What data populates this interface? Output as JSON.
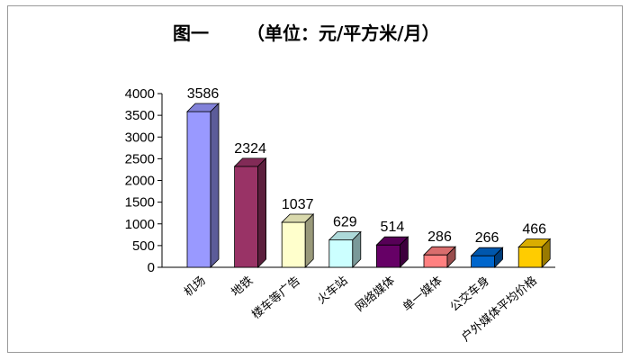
{
  "chart_data": {
    "type": "bar",
    "title": "图一",
    "subtitle": "（单位：元/平方米/月）",
    "categories": [
      "机场",
      "地铁",
      "楼车等广告",
      "火车站",
      "网络媒体",
      "单一媒体",
      "公交车身",
      "户外媒体平均价格"
    ],
    "values": [
      3586,
      2324,
      1037,
      629,
      514,
      286,
      266,
      466
    ],
    "data_labels": [
      "3586",
      "2324",
      "1037",
      "629",
      "514",
      "286",
      "266",
      "466"
    ],
    "ylim": [
      0,
      4000
    ],
    "yticks": [
      "0",
      "500",
      "1000",
      "1500",
      "2000",
      "2500",
      "3000",
      "3500",
      "4000"
    ],
    "xlabel": "",
    "ylabel": "",
    "grid": false,
    "bar_style": "3d",
    "colors": [
      "#9999ff",
      "#993366",
      "#ffffcc",
      "#ccffff",
      "#660066",
      "#ff8080",
      "#0066cc",
      "#ffcc00"
    ]
  }
}
